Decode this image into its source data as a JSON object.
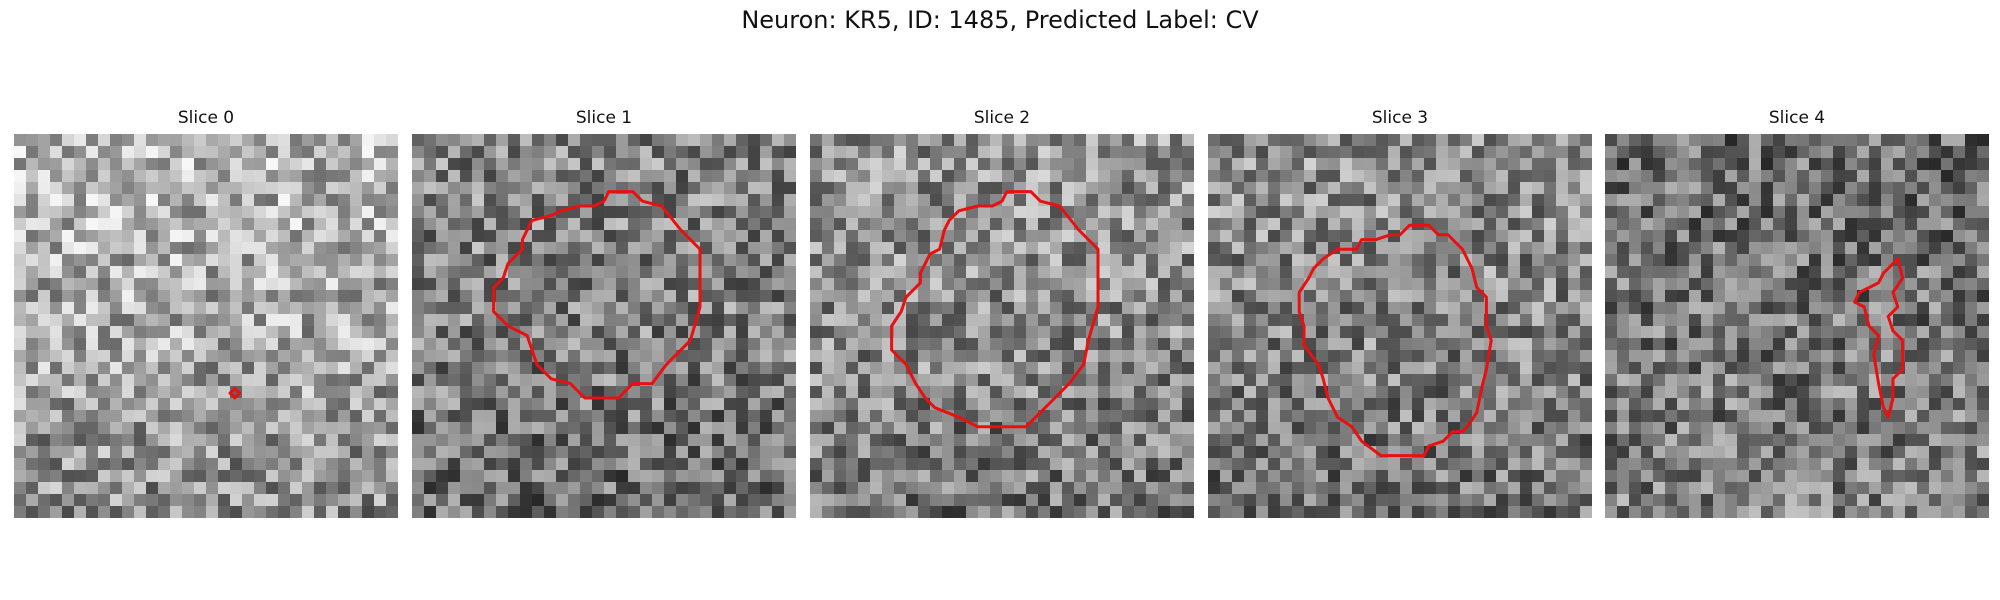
{
  "figure": {
    "title": "Neuron: KR5, ID: 1485, Predicted Label: CV"
  },
  "contour_color": "#e81010",
  "slices": [
    {
      "label": "Slice 0",
      "seed": 11,
      "base": [
        0.72,
        0.66,
        0.55
      ],
      "contour": [
        [
          46,
          55
        ],
        [
          47,
          54
        ],
        [
          46,
          53
        ],
        [
          45,
          54
        ],
        [
          46,
          55
        ]
      ]
    },
    {
      "label": "Slice 1",
      "seed": 23,
      "base": [
        0.52,
        0.5,
        0.42
      ],
      "contour": [
        [
          42,
          12
        ],
        [
          46,
          12
        ],
        [
          48,
          14
        ],
        [
          52,
          15
        ],
        [
          56,
          20
        ],
        [
          60,
          24
        ],
        [
          60,
          36
        ],
        [
          58,
          43
        ],
        [
          53,
          48
        ],
        [
          50,
          52
        ],
        [
          46,
          52
        ],
        [
          43,
          55
        ],
        [
          36,
          55
        ],
        [
          33,
          52
        ],
        [
          29,
          51
        ],
        [
          26,
          48
        ],
        [
          25,
          45
        ],
        [
          24,
          42
        ],
        [
          20,
          40
        ],
        [
          17,
          37
        ],
        [
          17,
          32
        ],
        [
          19,
          30
        ],
        [
          20,
          27
        ],
        [
          23,
          24
        ],
        [
          23,
          22
        ],
        [
          25,
          18
        ],
        [
          29,
          17
        ],
        [
          31,
          16
        ],
        [
          35,
          15
        ],
        [
          38,
          15
        ],
        [
          40,
          14
        ],
        [
          41,
          12
        ],
        [
          42,
          12
        ]
      ]
    },
    {
      "label": "Slice 2",
      "seed": 37,
      "base": [
        0.58,
        0.55,
        0.45
      ],
      "contour": [
        [
          42,
          12
        ],
        [
          46,
          12
        ],
        [
          48,
          14
        ],
        [
          52,
          15
        ],
        [
          56,
          20
        ],
        [
          60,
          24
        ],
        [
          60,
          36
        ],
        [
          58,
          43
        ],
        [
          57,
          48
        ],
        [
          54,
          52
        ],
        [
          51,
          55
        ],
        [
          47,
          59
        ],
        [
          45,
          61
        ],
        [
          35,
          61
        ],
        [
          31,
          59
        ],
        [
          26,
          57
        ],
        [
          24,
          55
        ],
        [
          22,
          52
        ],
        [
          20,
          48
        ],
        [
          17,
          45
        ],
        [
          17,
          40
        ],
        [
          19,
          37
        ],
        [
          20,
          34
        ],
        [
          23,
          31
        ],
        [
          23,
          29
        ],
        [
          25,
          25
        ],
        [
          27,
          24
        ],
        [
          28,
          20
        ],
        [
          29,
          18
        ],
        [
          31,
          16
        ],
        [
          35,
          15
        ],
        [
          38,
          15
        ],
        [
          40,
          14
        ],
        [
          41,
          12
        ],
        [
          42,
          12
        ]
      ]
    },
    {
      "label": "Slice 3",
      "seed": 53,
      "base": [
        0.56,
        0.52,
        0.44
      ],
      "contour": [
        [
          42,
          19
        ],
        [
          46,
          19
        ],
        [
          48,
          21
        ],
        [
          50,
          21
        ],
        [
          53,
          24
        ],
        [
          55,
          28
        ],
        [
          56,
          32
        ],
        [
          58,
          34
        ],
        [
          58,
          40
        ],
        [
          59,
          43
        ],
        [
          58,
          49
        ],
        [
          57,
          53
        ],
        [
          56,
          58
        ],
        [
          54,
          61
        ],
        [
          53,
          62
        ],
        [
          51,
          62
        ],
        [
          49,
          64
        ],
        [
          46,
          65
        ],
        [
          45,
          67
        ],
        [
          36,
          67
        ],
        [
          32,
          64
        ],
        [
          30,
          61
        ],
        [
          27,
          59
        ],
        [
          25,
          55
        ],
        [
          24,
          51
        ],
        [
          23,
          48
        ],
        [
          20,
          44
        ],
        [
          20,
          40
        ],
        [
          19,
          37
        ],
        [
          19,
          33
        ],
        [
          21,
          30
        ],
        [
          22,
          28
        ],
        [
          24,
          26
        ],
        [
          27,
          24
        ],
        [
          31,
          24
        ],
        [
          32,
          22
        ],
        [
          35,
          22
        ],
        [
          38,
          21
        ],
        [
          40,
          21
        ],
        [
          42,
          19
        ]
      ]
    },
    {
      "label": "Slice 4",
      "seed": 71,
      "base": [
        0.42,
        0.46,
        0.5
      ],
      "contour": [
        [
          58,
          29
        ],
        [
          61,
          26
        ],
        [
          62,
          30
        ],
        [
          60,
          33
        ],
        [
          61,
          36
        ],
        [
          59,
          38
        ],
        [
          60,
          41
        ],
        [
          62,
          43
        ],
        [
          62,
          49
        ],
        [
          60,
          51
        ],
        [
          60,
          55
        ],
        [
          59,
          59
        ],
        [
          58,
          57
        ],
        [
          57,
          52
        ],
        [
          56,
          46
        ],
        [
          57,
          42
        ],
        [
          55,
          40
        ],
        [
          54,
          36
        ],
        [
          52,
          35
        ],
        [
          53,
          33
        ],
        [
          55,
          32
        ],
        [
          57,
          31
        ],
        [
          58,
          29
        ]
      ]
    }
  ]
}
